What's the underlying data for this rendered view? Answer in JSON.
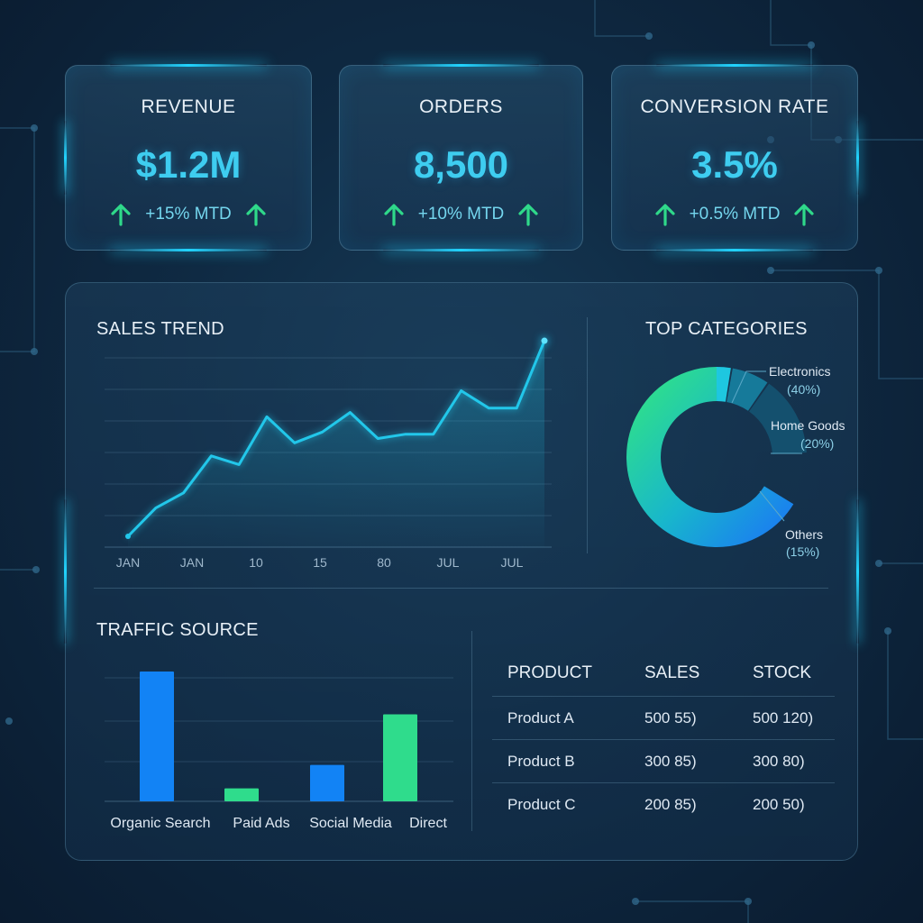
{
  "kpis": [
    {
      "title": "REVENUE",
      "value": "$1.2M",
      "change": "+15% MTD"
    },
    {
      "title": "ORDERS",
      "value": "8,500",
      "change": "+10% MTD"
    },
    {
      "title": "CONVERSION RATE",
      "value": "3.5%",
      "change": "+0.5% MTD"
    }
  ],
  "icons": {
    "trend": "arrow-up-icon"
  },
  "colors": {
    "accent": "#21d4ff",
    "value_text": "#3ecdf0",
    "up_arrow": "#2fd98a",
    "bar_blue": "#1283f5",
    "bar_green": "#2fdc8c"
  },
  "sales_trend": {
    "title": "SALES TREND"
  },
  "top_categories": {
    "title": "TOP CATEGORIES"
  },
  "traffic_source": {
    "title": "TRAFFIC SOURCE"
  },
  "chart_data": [
    {
      "type": "line",
      "name": "sales_trend",
      "title": "SALES TREND",
      "x_tick_labels": [
        "JAN",
        "JAN",
        "10",
        "15",
        "80",
        "JUL",
        "JUL"
      ],
      "values": [
        5,
        18,
        25,
        42,
        38,
        60,
        48,
        53,
        62,
        50,
        52,
        52,
        72,
        64,
        64,
        95
      ],
      "ylim": [
        0,
        100
      ],
      "grid": true
    },
    {
      "type": "pie",
      "name": "top_categories",
      "title": "TOP CATEGORIES",
      "labels": [
        "Electronics",
        "Home Goods",
        "Others"
      ],
      "percent_labels": [
        "(40%)",
        "(20%)",
        "(15%)"
      ],
      "values": [
        40,
        20,
        15
      ]
    },
    {
      "type": "bar",
      "name": "traffic_source",
      "title": "TRAFFIC SOURCE",
      "categories": [
        "Organic Search",
        "Paid Ads",
        "Social Media",
        "Direct"
      ],
      "values": [
        100,
        10,
        28,
        67
      ],
      "ylim": [
        0,
        100
      ],
      "grid": true
    },
    {
      "type": "table",
      "name": "products",
      "columns": [
        "PRODUCT",
        "SALES",
        "STOCK"
      ],
      "rows": [
        [
          "Product A",
          "500 55)",
          "500 120)"
        ],
        [
          "Product B",
          "300 85)",
          "300 80)"
        ],
        [
          "Product C",
          "200 85)",
          "200 50)"
        ]
      ]
    }
  ]
}
